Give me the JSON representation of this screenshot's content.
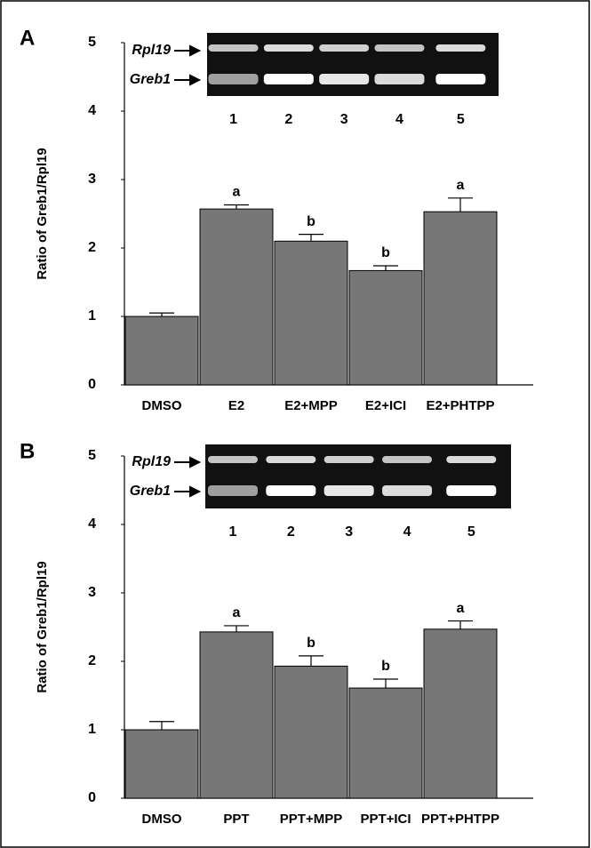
{
  "chart_data": [
    {
      "type": "bar",
      "panel": "A",
      "y_label": "Ratio of Greb1/Rpl19",
      "categories": [
        "DMSO",
        "E2",
        "E2+MPP",
        "E2+ICI",
        "E2+PHTPP"
      ],
      "values": [
        1.0,
        2.57,
        2.1,
        1.67,
        2.53
      ],
      "errors": [
        0.05,
        0.06,
        0.1,
        0.07,
        0.2
      ],
      "significance_letters": [
        null,
        "a",
        "b",
        "b",
        "a"
      ],
      "color": "#777777",
      "ylim": [
        0,
        5
      ],
      "yticks": [
        0,
        1,
        2,
        3,
        4,
        5
      ],
      "gel": {
        "band_labels": [
          "Rpl19",
          "Greb1"
        ],
        "lanes": [
          "1",
          "2",
          "3",
          "4",
          "5"
        ]
      }
    },
    {
      "type": "bar",
      "panel": "B",
      "y_label": "Ratio of Greb1/Rpl19",
      "categories": [
        "DMSO",
        "PPT",
        "PPT+MPP",
        "PPT+ICI",
        "PPT+PHTPP"
      ],
      "values": [
        1.0,
        2.43,
        1.93,
        1.61,
        2.47
      ],
      "errors": [
        0.12,
        0.09,
        0.15,
        0.13,
        0.12
      ],
      "significance_letters": [
        null,
        "a",
        "b",
        "b",
        "a"
      ],
      "color": "#777777",
      "ylim": [
        0,
        5
      ],
      "yticks": [
        0,
        1,
        2,
        3,
        4,
        5
      ],
      "gel": {
        "band_labels": [
          "Rpl19",
          "Greb1"
        ],
        "lanes": [
          "1",
          "2",
          "3",
          "4",
          "5"
        ]
      }
    }
  ]
}
